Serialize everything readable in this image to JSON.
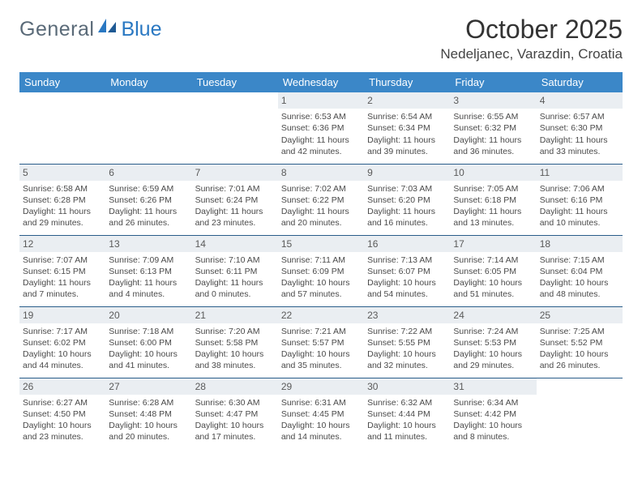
{
  "logo": {
    "text1": "General",
    "text2": "Blue",
    "shape_color": "#2a78c2",
    "text1_color": "#5a6a78"
  },
  "title": "October 2025",
  "location": "Nedeljanec, Varazdin, Croatia",
  "colors": {
    "header_bg": "#3b87c8",
    "header_text": "#ffffff",
    "row_border": "#2a5d8a",
    "daynum_bg": "#eaeef2",
    "body_text": "#4a4a4a",
    "background": "#ffffff"
  },
  "fonts": {
    "title_size": 32,
    "location_size": 17,
    "header_size": 13,
    "cell_size": 10.5
  },
  "day_names": [
    "Sunday",
    "Monday",
    "Tuesday",
    "Wednesday",
    "Thursday",
    "Friday",
    "Saturday"
  ],
  "weeks": [
    [
      {
        "empty": true
      },
      {
        "empty": true
      },
      {
        "empty": true
      },
      {
        "day": "1",
        "sunrise": "6:53 AM",
        "sunset": "6:36 PM",
        "daylight_l1": "Daylight: 11 hours",
        "daylight_l2": "and 42 minutes."
      },
      {
        "day": "2",
        "sunrise": "6:54 AM",
        "sunset": "6:34 PM",
        "daylight_l1": "Daylight: 11 hours",
        "daylight_l2": "and 39 minutes."
      },
      {
        "day": "3",
        "sunrise": "6:55 AM",
        "sunset": "6:32 PM",
        "daylight_l1": "Daylight: 11 hours",
        "daylight_l2": "and 36 minutes."
      },
      {
        "day": "4",
        "sunrise": "6:57 AM",
        "sunset": "6:30 PM",
        "daylight_l1": "Daylight: 11 hours",
        "daylight_l2": "and 33 minutes."
      }
    ],
    [
      {
        "day": "5",
        "sunrise": "6:58 AM",
        "sunset": "6:28 PM",
        "daylight_l1": "Daylight: 11 hours",
        "daylight_l2": "and 29 minutes."
      },
      {
        "day": "6",
        "sunrise": "6:59 AM",
        "sunset": "6:26 PM",
        "daylight_l1": "Daylight: 11 hours",
        "daylight_l2": "and 26 minutes."
      },
      {
        "day": "7",
        "sunrise": "7:01 AM",
        "sunset": "6:24 PM",
        "daylight_l1": "Daylight: 11 hours",
        "daylight_l2": "and 23 minutes."
      },
      {
        "day": "8",
        "sunrise": "7:02 AM",
        "sunset": "6:22 PM",
        "daylight_l1": "Daylight: 11 hours",
        "daylight_l2": "and 20 minutes."
      },
      {
        "day": "9",
        "sunrise": "7:03 AM",
        "sunset": "6:20 PM",
        "daylight_l1": "Daylight: 11 hours",
        "daylight_l2": "and 16 minutes."
      },
      {
        "day": "10",
        "sunrise": "7:05 AM",
        "sunset": "6:18 PM",
        "daylight_l1": "Daylight: 11 hours",
        "daylight_l2": "and 13 minutes."
      },
      {
        "day": "11",
        "sunrise": "7:06 AM",
        "sunset": "6:16 PM",
        "daylight_l1": "Daylight: 11 hours",
        "daylight_l2": "and 10 minutes."
      }
    ],
    [
      {
        "day": "12",
        "sunrise": "7:07 AM",
        "sunset": "6:15 PM",
        "daylight_l1": "Daylight: 11 hours",
        "daylight_l2": "and 7 minutes."
      },
      {
        "day": "13",
        "sunrise": "7:09 AM",
        "sunset": "6:13 PM",
        "daylight_l1": "Daylight: 11 hours",
        "daylight_l2": "and 4 minutes."
      },
      {
        "day": "14",
        "sunrise": "7:10 AM",
        "sunset": "6:11 PM",
        "daylight_l1": "Daylight: 11 hours",
        "daylight_l2": "and 0 minutes."
      },
      {
        "day": "15",
        "sunrise": "7:11 AM",
        "sunset": "6:09 PM",
        "daylight_l1": "Daylight: 10 hours",
        "daylight_l2": "and 57 minutes."
      },
      {
        "day": "16",
        "sunrise": "7:13 AM",
        "sunset": "6:07 PM",
        "daylight_l1": "Daylight: 10 hours",
        "daylight_l2": "and 54 minutes."
      },
      {
        "day": "17",
        "sunrise": "7:14 AM",
        "sunset": "6:05 PM",
        "daylight_l1": "Daylight: 10 hours",
        "daylight_l2": "and 51 minutes."
      },
      {
        "day": "18",
        "sunrise": "7:15 AM",
        "sunset": "6:04 PM",
        "daylight_l1": "Daylight: 10 hours",
        "daylight_l2": "and 48 minutes."
      }
    ],
    [
      {
        "day": "19",
        "sunrise": "7:17 AM",
        "sunset": "6:02 PM",
        "daylight_l1": "Daylight: 10 hours",
        "daylight_l2": "and 44 minutes."
      },
      {
        "day": "20",
        "sunrise": "7:18 AM",
        "sunset": "6:00 PM",
        "daylight_l1": "Daylight: 10 hours",
        "daylight_l2": "and 41 minutes."
      },
      {
        "day": "21",
        "sunrise": "7:20 AM",
        "sunset": "5:58 PM",
        "daylight_l1": "Daylight: 10 hours",
        "daylight_l2": "and 38 minutes."
      },
      {
        "day": "22",
        "sunrise": "7:21 AM",
        "sunset": "5:57 PM",
        "daylight_l1": "Daylight: 10 hours",
        "daylight_l2": "and 35 minutes."
      },
      {
        "day": "23",
        "sunrise": "7:22 AM",
        "sunset": "5:55 PM",
        "daylight_l1": "Daylight: 10 hours",
        "daylight_l2": "and 32 minutes."
      },
      {
        "day": "24",
        "sunrise": "7:24 AM",
        "sunset": "5:53 PM",
        "daylight_l1": "Daylight: 10 hours",
        "daylight_l2": "and 29 minutes."
      },
      {
        "day": "25",
        "sunrise": "7:25 AM",
        "sunset": "5:52 PM",
        "daylight_l1": "Daylight: 10 hours",
        "daylight_l2": "and 26 minutes."
      }
    ],
    [
      {
        "day": "26",
        "sunrise": "6:27 AM",
        "sunset": "4:50 PM",
        "daylight_l1": "Daylight: 10 hours",
        "daylight_l2": "and 23 minutes."
      },
      {
        "day": "27",
        "sunrise": "6:28 AM",
        "sunset": "4:48 PM",
        "daylight_l1": "Daylight: 10 hours",
        "daylight_l2": "and 20 minutes."
      },
      {
        "day": "28",
        "sunrise": "6:30 AM",
        "sunset": "4:47 PM",
        "daylight_l1": "Daylight: 10 hours",
        "daylight_l2": "and 17 minutes."
      },
      {
        "day": "29",
        "sunrise": "6:31 AM",
        "sunset": "4:45 PM",
        "daylight_l1": "Daylight: 10 hours",
        "daylight_l2": "and 14 minutes."
      },
      {
        "day": "30",
        "sunrise": "6:32 AM",
        "sunset": "4:44 PM",
        "daylight_l1": "Daylight: 10 hours",
        "daylight_l2": "and 11 minutes."
      },
      {
        "day": "31",
        "sunrise": "6:34 AM",
        "sunset": "4:42 PM",
        "daylight_l1": "Daylight: 10 hours",
        "daylight_l2": "and 8 minutes."
      },
      {
        "empty": true
      }
    ]
  ],
  "labels": {
    "sunrise_prefix": "Sunrise: ",
    "sunset_prefix": "Sunset: "
  }
}
